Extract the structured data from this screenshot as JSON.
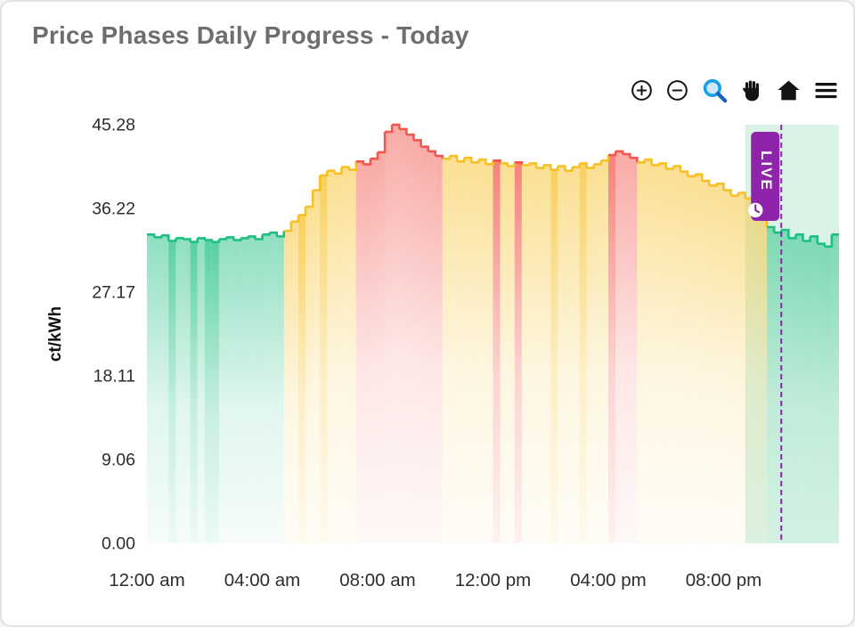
{
  "title": "Price Phases Daily Progress - Today",
  "toolbar": {
    "icons": [
      "zoom-in",
      "zoom-out",
      "zoom-select",
      "pan",
      "home",
      "menu"
    ],
    "zoom_select_color": "#18a0e8",
    "icon_color": "#141414"
  },
  "chart_data": {
    "type": "area",
    "title": "Price Phases Daily Progress - Today",
    "xlabel": "",
    "ylabel": "ct/kWh",
    "ylim": [
      0,
      45.28
    ],
    "xlim_hours": [
      0,
      24
    ],
    "grid": false,
    "legend": "none",
    "yticks": [
      {
        "v": 45.28,
        "label": "45.28"
      },
      {
        "v": 36.22,
        "label": "36.22"
      },
      {
        "v": 27.17,
        "label": "27.17"
      },
      {
        "v": 18.11,
        "label": "18.11"
      },
      {
        "v": 9.06,
        "label": "9.06"
      },
      {
        "v": 0,
        "label": "0.00"
      }
    ],
    "xticks": [
      {
        "hour": 0,
        "label": "12:00 am"
      },
      {
        "hour": 4,
        "label": "04:00 am"
      },
      {
        "hour": 8,
        "label": "08:00 am"
      },
      {
        "hour": 12,
        "label": "12:00 pm"
      },
      {
        "hour": 16,
        "label": "04:00 pm"
      },
      {
        "hour": 20,
        "label": "08:00 pm"
      }
    ],
    "phase_colors": {
      "g": "#1fbf83",
      "y": "#f6c026",
      "r": "#f2564d"
    },
    "live": {
      "label": "LIVE",
      "line_hour": 22,
      "region_start_hour": 20.75,
      "color": "#8e24aa",
      "hand_color": "#7a1fa0",
      "region_color": "#2bb673",
      "region_opacity": 0.17
    },
    "interval_minutes": 15,
    "point_format": [
      "time",
      "value_ct_per_kwh",
      "phase",
      "highlight"
    ],
    "points": [
      [
        "00:00",
        33.4,
        "g"
      ],
      [
        "00:15",
        33.1,
        "g"
      ],
      [
        "00:30",
        33.3,
        "g"
      ],
      [
        "00:45",
        32.7,
        "g",
        1
      ],
      [
        "01:00",
        33.0,
        "g"
      ],
      [
        "01:15",
        32.9,
        "g"
      ],
      [
        "01:30",
        32.6,
        "g",
        1
      ],
      [
        "01:45",
        33.0,
        "g"
      ],
      [
        "02:00",
        32.8,
        "g",
        1
      ],
      [
        "02:15",
        32.6,
        "g",
        1
      ],
      [
        "02:30",
        32.9,
        "g"
      ],
      [
        "02:45",
        33.1,
        "g"
      ],
      [
        "03:00",
        32.8,
        "g"
      ],
      [
        "03:15",
        33.0,
        "g"
      ],
      [
        "03:30",
        33.2,
        "g"
      ],
      [
        "03:45",
        32.9,
        "g"
      ],
      [
        "04:00",
        33.4,
        "g"
      ],
      [
        "04:15",
        33.6,
        "g"
      ],
      [
        "04:30",
        33.2,
        "g"
      ],
      [
        "04:45",
        33.8,
        "y"
      ],
      [
        "05:00",
        34.8,
        "y"
      ],
      [
        "05:15",
        35.5,
        "y",
        1
      ],
      [
        "05:30",
        36.4,
        "y"
      ],
      [
        "05:45",
        38.2,
        "y"
      ],
      [
        "06:00",
        39.8,
        "y",
        1
      ],
      [
        "06:15",
        40.3,
        "y"
      ],
      [
        "06:30",
        40.0,
        "y"
      ],
      [
        "06:45",
        40.7,
        "y"
      ],
      [
        "07:00",
        40.4,
        "y"
      ],
      [
        "07:15",
        41.3,
        "r"
      ],
      [
        "07:30",
        41.0,
        "r"
      ],
      [
        "07:45",
        41.6,
        "r"
      ],
      [
        "08:00",
        42.3,
        "r"
      ],
      [
        "08:15",
        44.5,
        "r"
      ],
      [
        "08:30",
        45.28,
        "r"
      ],
      [
        "08:45",
        44.8,
        "r"
      ],
      [
        "09:00",
        44.2,
        "r"
      ],
      [
        "09:15",
        43.6,
        "r"
      ],
      [
        "09:30",
        42.9,
        "r"
      ],
      [
        "09:45",
        42.4,
        "r"
      ],
      [
        "10:00",
        41.9,
        "r"
      ],
      [
        "10:15",
        41.6,
        "y"
      ],
      [
        "10:30",
        41.9,
        "y"
      ],
      [
        "10:45",
        41.3,
        "y"
      ],
      [
        "11:00",
        41.7,
        "y"
      ],
      [
        "11:15",
        41.2,
        "y"
      ],
      [
        "11:30",
        41.5,
        "y"
      ],
      [
        "11:45",
        41.0,
        "y"
      ],
      [
        "12:00",
        41.4,
        "r",
        1
      ],
      [
        "12:15",
        41.1,
        "y"
      ],
      [
        "12:30",
        40.8,
        "y"
      ],
      [
        "12:45",
        41.2,
        "r",
        1
      ],
      [
        "13:00",
        40.9,
        "y"
      ],
      [
        "13:15",
        41.1,
        "y"
      ],
      [
        "13:30",
        40.6,
        "y"
      ],
      [
        "13:45",
        40.9,
        "y"
      ],
      [
        "14:00",
        40.4,
        "y",
        1
      ],
      [
        "14:15",
        40.8,
        "y"
      ],
      [
        "14:30",
        40.3,
        "y"
      ],
      [
        "14:45",
        40.7,
        "y"
      ],
      [
        "15:00",
        41.1,
        "y",
        1
      ],
      [
        "15:15",
        40.6,
        "y"
      ],
      [
        "15:30",
        41.0,
        "y"
      ],
      [
        "15:45",
        41.4,
        "y"
      ],
      [
        "16:00",
        42.0,
        "r",
        1
      ],
      [
        "16:15",
        42.4,
        "r"
      ],
      [
        "16:30",
        42.1,
        "r"
      ],
      [
        "16:45",
        41.7,
        "r"
      ],
      [
        "17:00",
        41.2,
        "y"
      ],
      [
        "17:15",
        41.5,
        "y"
      ],
      [
        "17:30",
        40.9,
        "y"
      ],
      [
        "17:45",
        41.1,
        "y"
      ],
      [
        "18:00",
        40.5,
        "y"
      ],
      [
        "18:15",
        40.8,
        "y"
      ],
      [
        "18:30",
        40.2,
        "y"
      ],
      [
        "18:45",
        39.7,
        "y"
      ],
      [
        "19:00",
        39.9,
        "y"
      ],
      [
        "19:15",
        39.2,
        "y"
      ],
      [
        "19:30",
        38.7,
        "y"
      ],
      [
        "19:45",
        38.9,
        "y"
      ],
      [
        "20:00",
        38.2,
        "y"
      ],
      [
        "20:15",
        37.6,
        "y"
      ],
      [
        "20:30",
        37.9,
        "y"
      ],
      [
        "20:45",
        37.3,
        "y"
      ],
      [
        "21:00",
        36.2,
        "y"
      ],
      [
        "21:15",
        35.1,
        "y"
      ],
      [
        "21:30",
        34.2,
        "g"
      ],
      [
        "21:45",
        33.6,
        "g"
      ],
      [
        "22:00",
        33.9,
        "g"
      ],
      [
        "22:15",
        33.0,
        "g"
      ],
      [
        "22:30",
        33.4,
        "g"
      ],
      [
        "22:45",
        32.7,
        "g"
      ],
      [
        "23:00",
        33.2,
        "g"
      ],
      [
        "23:15",
        32.4,
        "g"
      ],
      [
        "23:30",
        32.1,
        "g"
      ],
      [
        "23:45",
        33.4,
        "g"
      ]
    ]
  }
}
